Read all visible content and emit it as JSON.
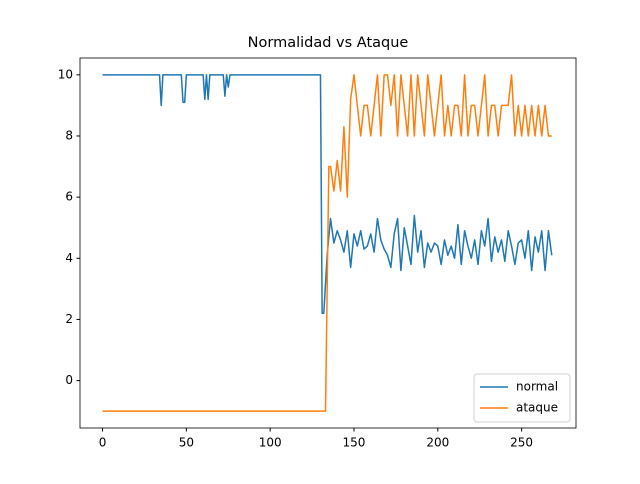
{
  "chart_data": {
    "type": "line",
    "title": "Normalidad vs Ataque",
    "xlim": [
      -13.45,
      282.45
    ],
    "xticks": [
      0,
      50,
      100,
      150,
      200,
      250
    ],
    "ylim": [
      -1.55,
      10.55
    ],
    "yticks": [
      0,
      2,
      4,
      6,
      8,
      10
    ],
    "legend": "lower right",
    "series": [
      {
        "name": "normal",
        "color": "#1f77b4",
        "x": [
          0,
          34,
          35,
          36,
          47,
          48,
          49,
          50,
          60,
          61,
          62,
          63,
          64,
          72,
          73,
          74,
          75,
          76,
          77,
          78,
          130,
          131,
          132,
          134,
          136,
          138,
          140,
          142,
          144,
          146,
          148,
          150,
          152,
          154,
          156,
          158,
          160,
          162,
          164,
          166,
          168,
          170,
          172,
          174,
          176,
          178,
          180,
          182,
          184,
          186,
          188,
          190,
          192,
          194,
          196,
          198,
          200,
          202,
          204,
          206,
          208,
          210,
          212,
          214,
          216,
          218,
          220,
          222,
          224,
          226,
          228,
          230,
          232,
          234,
          236,
          238,
          240,
          242,
          244,
          246,
          248,
          250,
          252,
          254,
          256,
          258,
          260,
          262,
          264,
          266,
          268
        ],
        "values": [
          10,
          10,
          9,
          10,
          10,
          9.1,
          9.1,
          10,
          10,
          9.2,
          10,
          9.2,
          10,
          10,
          9.3,
          10,
          9.6,
          10,
          10,
          10,
          10,
          2.2,
          2.2,
          4.1,
          5.3,
          4.5,
          4.9,
          4.6,
          4.2,
          4.9,
          3.7,
          4.8,
          4.4,
          4.9,
          4.3,
          4.4,
          4.8,
          4.2,
          5.3,
          4.6,
          4.3,
          4.1,
          3.7,
          4.8,
          5.3,
          3.6,
          5.0,
          4.4,
          3.8,
          5.4,
          4.2,
          4.9,
          3.7,
          4.5,
          4.2,
          4.5,
          4.4,
          3.8,
          4.6,
          4.1,
          4.4,
          4.0,
          5.1,
          3.8,
          4.9,
          4.4,
          4.0,
          4.6,
          3.8,
          4.9,
          4.4,
          5.3,
          3.9,
          4.7,
          4.2,
          4.6,
          3.9,
          4.9,
          4.4,
          3.8,
          4.5,
          4.6,
          4.0,
          4.9,
          3.6,
          4.7,
          4.2,
          4.9,
          3.6,
          4.9,
          4.1
        ]
      },
      {
        "name": "ataque",
        "color": "#ff7f0e",
        "x": [
          0,
          133,
          134,
          135,
          136,
          138,
          140,
          142,
          144,
          146,
          148,
          150,
          152,
          154,
          156,
          158,
          160,
          162,
          164,
          166,
          168,
          170,
          172,
          174,
          176,
          178,
          180,
          182,
          184,
          186,
          188,
          190,
          192,
          194,
          196,
          198,
          200,
          202,
          204,
          206,
          208,
          210,
          212,
          214,
          216,
          218,
          220,
          222,
          224,
          226,
          228,
          230,
          232,
          234,
          236,
          238,
          240,
          242,
          244,
          246,
          248,
          250,
          252,
          254,
          256,
          258,
          260,
          262,
          264,
          266,
          268
        ],
        "values": [
          -1,
          -1,
          3,
          7,
          7,
          6.2,
          7.2,
          6.2,
          8.3,
          6.0,
          9.2,
          10,
          9,
          8,
          9,
          9,
          8,
          9,
          10,
          8,
          10,
          10,
          9,
          10,
          8,
          10,
          9,
          8,
          10,
          8,
          10,
          9,
          8,
          10,
          9,
          8,
          9,
          10,
          8,
          9,
          8,
          9,
          9,
          8,
          10,
          8,
          9,
          9,
          8,
          9,
          10,
          8,
          9,
          9,
          8,
          9,
          9,
          9,
          10,
          8,
          9,
          8,
          9,
          8,
          9,
          8,
          9,
          8,
          9,
          8,
          8
        ]
      }
    ]
  }
}
